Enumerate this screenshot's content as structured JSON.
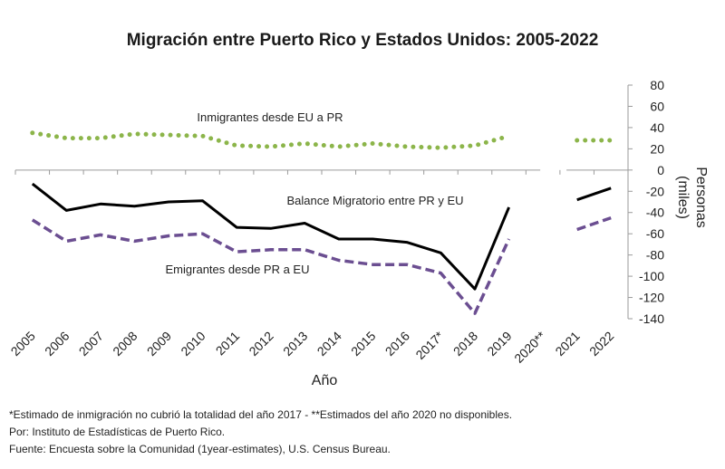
{
  "chart_data": {
    "type": "line",
    "title": "Migración entre Puerto Rico y Estados Unidos: 2005-2022",
    "xlabel": "Año",
    "ylabel": "Personas (miles)",
    "ylim": [
      -140,
      80
    ],
    "yticks": [
      80,
      60,
      40,
      20,
      0,
      -20,
      -40,
      -60,
      -80,
      -100,
      -120,
      -140
    ],
    "categories": [
      "2005",
      "2006",
      "2007",
      "2008",
      "2009",
      "2010",
      "2011",
      "2012",
      "2013",
      "2014",
      "2015",
      "2016",
      "2017*",
      "2018",
      "2019",
      "2020**",
      "2021",
      "2022"
    ],
    "series": [
      {
        "name": "Inmigrantes desde EU a PR",
        "style": "dotted",
        "color": "#8cb54a",
        "values": [
          35,
          30,
          30,
          34,
          33,
          32,
          23,
          22,
          25,
          22,
          25,
          22,
          21,
          23,
          32,
          null,
          28,
          28
        ]
      },
      {
        "name": "Balance  Migratorio entre PR y  EU",
        "style": "solid",
        "color": "#000000",
        "values": [
          -13,
          -38,
          -32,
          -34,
          -30,
          -29,
          -54,
          -55,
          -50,
          -65,
          -65,
          -68,
          -78,
          -112,
          -35,
          null,
          -28,
          -17
        ]
      },
      {
        "name": "Emigrantes desde PR a EU",
        "style": "dashed",
        "color": "#6b4e91",
        "values": [
          -47,
          -67,
          -61,
          -67,
          -62,
          -60,
          -77,
          -75,
          -75,
          -85,
          -89,
          -89,
          -97,
          -135,
          -65,
          null,
          -56,
          -45
        ]
      }
    ]
  },
  "footnotes": {
    "line1": "*Estimado de inmigración no cubrió la totalidad del año 2017 - **Estimados del año 2020 no disponibles.",
    "line2": "Por: Instituto de Estadísticas de Puerto Rico.",
    "line3": "Fuente: Encuesta sobre la Comunidad (1year-estimates), U.S. Census Bureau."
  }
}
